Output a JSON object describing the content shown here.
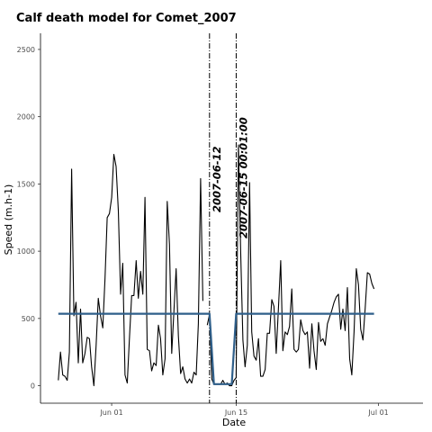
{
  "chart_data": {
    "type": "line",
    "title": "Calf death model for Comet_2007",
    "xlabel": "Date",
    "ylabel": "Speed (m.h-1)",
    "xlim": [
      "2007-05-24",
      "2007-07-06"
    ],
    "ylim": [
      -130,
      2620
    ],
    "y_ticks": [
      0,
      500,
      1000,
      1500,
      2000,
      2500
    ],
    "x_ticks": [
      {
        "date": "2007-06-01",
        "label": "Jun 01"
      },
      {
        "date": "2007-06-15",
        "label": "Jun 15"
      },
      {
        "date": "2007-07-01",
        "label": "Jul 01"
      }
    ],
    "grid": false,
    "series": [
      {
        "role": "observed speed",
        "color": "#000000",
        "points": [
          [
            "2007-05-26 00:00",
            40
          ],
          [
            "2007-05-26 06:00",
            250
          ],
          [
            "2007-05-26 12:00",
            80
          ],
          [
            "2007-05-26 18:00",
            70
          ],
          [
            "2007-05-27 00:00",
            40
          ],
          [
            "2007-05-27 06:00",
            250
          ],
          [
            "2007-05-27 12:00",
            1610
          ],
          [
            "2007-05-27 18:00",
            520
          ],
          [
            "2007-05-28 00:00",
            620
          ],
          [
            "2007-05-28 06:00",
            170
          ],
          [
            "2007-05-28 12:00",
            570
          ],
          [
            "2007-05-28 18:00",
            170
          ],
          [
            "2007-05-29 00:00",
            240
          ],
          [
            "2007-05-29 06:00",
            360
          ],
          [
            "2007-05-29 12:00",
            350
          ],
          [
            "2007-05-29 18:00",
            140
          ],
          [
            "2007-05-30 00:00",
            0
          ],
          [
            "2007-05-30 06:00",
            300
          ],
          [
            "2007-05-30 12:00",
            650
          ],
          [
            "2007-05-30 18:00",
            520
          ],
          [
            "2007-05-31 00:00",
            430
          ],
          [
            "2007-05-31 06:00",
            800
          ],
          [
            "2007-05-31 12:00",
            1250
          ],
          [
            "2007-05-31 18:00",
            1280
          ],
          [
            "2007-06-01 00:00",
            1400
          ],
          [
            "2007-06-01 06:00",
            1720
          ],
          [
            "2007-06-01 12:00",
            1630
          ],
          [
            "2007-06-01 18:00",
            1300
          ],
          [
            "2007-06-02 00:00",
            680
          ],
          [
            "2007-06-02 06:00",
            910
          ],
          [
            "2007-06-02 12:00",
            80
          ],
          [
            "2007-06-02 18:00",
            20
          ],
          [
            "2007-06-03 00:00",
            350
          ],
          [
            "2007-06-03 06:00",
            670
          ],
          [
            "2007-06-03 12:00",
            670
          ],
          [
            "2007-06-03 18:00",
            930
          ],
          [
            "2007-06-04 00:00",
            650
          ],
          [
            "2007-06-04 06:00",
            850
          ],
          [
            "2007-06-04 12:00",
            680
          ],
          [
            "2007-06-04 18:00",
            1400
          ],
          [
            "2007-06-05 00:00",
            270
          ],
          [
            "2007-06-05 06:00",
            260
          ],
          [
            "2007-06-05 12:00",
            110
          ],
          [
            "2007-06-05 18:00",
            170
          ],
          [
            "2007-06-06 00:00",
            150
          ],
          [
            "2007-06-06 06:00",
            450
          ],
          [
            "2007-06-06 12:00",
            350
          ],
          [
            "2007-06-06 18:00",
            80
          ],
          [
            "2007-06-07 00:00",
            200
          ],
          [
            "2007-06-07 06:00",
            1370
          ],
          [
            "2007-06-07 12:00",
            1050
          ],
          [
            "2007-06-07 18:00",
            240
          ],
          [
            "2007-06-08 00:00",
            560
          ],
          [
            "2007-06-08 06:00",
            870
          ],
          [
            "2007-06-08 12:00",
            370
          ],
          [
            "2007-06-08 18:00",
            90
          ],
          [
            "2007-06-09 00:00",
            140
          ],
          [
            "2007-06-09 06:00",
            50
          ],
          [
            "2007-06-09 12:00",
            20
          ],
          [
            "2007-06-09 18:00",
            50
          ],
          [
            "2007-06-10 00:00",
            20
          ],
          [
            "2007-06-10 06:00",
            100
          ],
          [
            "2007-06-10 12:00",
            80
          ],
          [
            "2007-06-10 18:00",
            460
          ],
          [
            "2007-06-11 00:00",
            1540
          ],
          [
            "2007-06-11 06:00",
            630
          ],
          [
            "2007-06-11 12:00",
            null
          ],
          [
            "2007-06-11 18:00",
            450
          ],
          [
            "2007-06-12 00:00",
            530
          ],
          [
            "2007-06-12 06:00",
            50
          ],
          [
            "2007-06-12 12:00",
            10
          ],
          [
            "2007-06-12 18:00",
            10
          ],
          [
            "2007-06-13 00:00",
            10
          ],
          [
            "2007-06-13 06:00",
            10
          ],
          [
            "2007-06-13 12:00",
            40
          ],
          [
            "2007-06-13 18:00",
            10
          ],
          [
            "2007-06-14 00:00",
            20
          ],
          [
            "2007-06-14 06:00",
            0
          ],
          [
            "2007-06-14 12:00",
            0
          ],
          [
            "2007-06-14 18:00",
            40
          ],
          [
            "2007-06-15 00:00",
            60
          ],
          [
            "2007-06-15 06:00",
            1790
          ],
          [
            "2007-06-15 12:00",
            1000
          ],
          [
            "2007-06-15 18:00",
            340
          ],
          [
            "2007-06-16 00:00",
            140
          ],
          [
            "2007-06-16 06:00",
            300
          ],
          [
            "2007-06-16 12:00",
            1510
          ],
          [
            "2007-06-16 18:00",
            400
          ],
          [
            "2007-06-17 00:00",
            220
          ],
          [
            "2007-06-17 06:00",
            190
          ],
          [
            "2007-06-17 12:00",
            350
          ],
          [
            "2007-06-17 18:00",
            70
          ],
          [
            "2007-06-18 00:00",
            70
          ],
          [
            "2007-06-18 06:00",
            120
          ],
          [
            "2007-06-18 12:00",
            390
          ],
          [
            "2007-06-18 18:00",
            390
          ],
          [
            "2007-06-19 00:00",
            640
          ],
          [
            "2007-06-19 06:00",
            590
          ],
          [
            "2007-06-19 12:00",
            240
          ],
          [
            "2007-06-19 18:00",
            580
          ],
          [
            "2007-06-20 00:00",
            930
          ],
          [
            "2007-06-20 06:00",
            260
          ],
          [
            "2007-06-20 12:00",
            400
          ],
          [
            "2007-06-20 18:00",
            380
          ],
          [
            "2007-06-21 00:00",
            440
          ],
          [
            "2007-06-21 06:00",
            720
          ],
          [
            "2007-06-21 12:00",
            270
          ],
          [
            "2007-06-21 18:00",
            250
          ],
          [
            "2007-06-22 00:00",
            270
          ],
          [
            "2007-06-22 06:00",
            490
          ],
          [
            "2007-06-22 12:00",
            410
          ],
          [
            "2007-06-22 18:00",
            380
          ],
          [
            "2007-06-23 00:00",
            400
          ],
          [
            "2007-06-23 06:00",
            130
          ],
          [
            "2007-06-23 12:00",
            460
          ],
          [
            "2007-06-23 18:00",
            260
          ],
          [
            "2007-06-24 00:00",
            120
          ],
          [
            "2007-06-24 06:00",
            470
          ],
          [
            "2007-06-24 12:00",
            330
          ],
          [
            "2007-06-24 18:00",
            350
          ],
          [
            "2007-06-25 00:00",
            300
          ],
          [
            "2007-06-25 06:00",
            460
          ],
          [
            "2007-06-25 12:00",
            510
          ],
          [
            "2007-06-25 18:00",
            560
          ],
          [
            "2007-06-26 00:00",
            620
          ],
          [
            "2007-06-26 06:00",
            660
          ],
          [
            "2007-06-26 12:00",
            680
          ],
          [
            "2007-06-26 18:00",
            420
          ],
          [
            "2007-06-27 00:00",
            570
          ],
          [
            "2007-06-27 06:00",
            410
          ],
          [
            "2007-06-27 12:00",
            730
          ],
          [
            "2007-06-27 18:00",
            200
          ],
          [
            "2007-06-28 00:00",
            80
          ],
          [
            "2007-06-28 06:00",
            400
          ],
          [
            "2007-06-28 12:00",
            870
          ],
          [
            "2007-06-28 18:00",
            750
          ],
          [
            "2007-06-29 00:00",
            420
          ],
          [
            "2007-06-29 06:00",
            340
          ],
          [
            "2007-06-29 12:00",
            580
          ],
          [
            "2007-06-29 18:00",
            840
          ],
          [
            "2007-06-30 00:00",
            830
          ],
          [
            "2007-06-30 06:00",
            760
          ],
          [
            "2007-06-30 12:00",
            720
          ]
        ]
      },
      {
        "role": "model fit",
        "color": "#2f5f8a",
        "points": [
          [
            "2007-05-26 00:00",
            535
          ],
          [
            "2007-06-12 00:00",
            535
          ],
          [
            "2007-06-12 12:00",
            12
          ],
          [
            "2007-06-14 12:00",
            12
          ],
          [
            "2007-06-15 00:00",
            535
          ],
          [
            "2007-06-30 12:00",
            535
          ]
        ]
      }
    ],
    "annotations": [
      {
        "date": "2007-06-12 00:00",
        "label": "2007-06-12",
        "linestyle": "dash-dot"
      },
      {
        "date": "2007-06-15 00:00",
        "label": "2007-06-15 00:01:00",
        "linestyle": "dash-dot"
      }
    ]
  }
}
